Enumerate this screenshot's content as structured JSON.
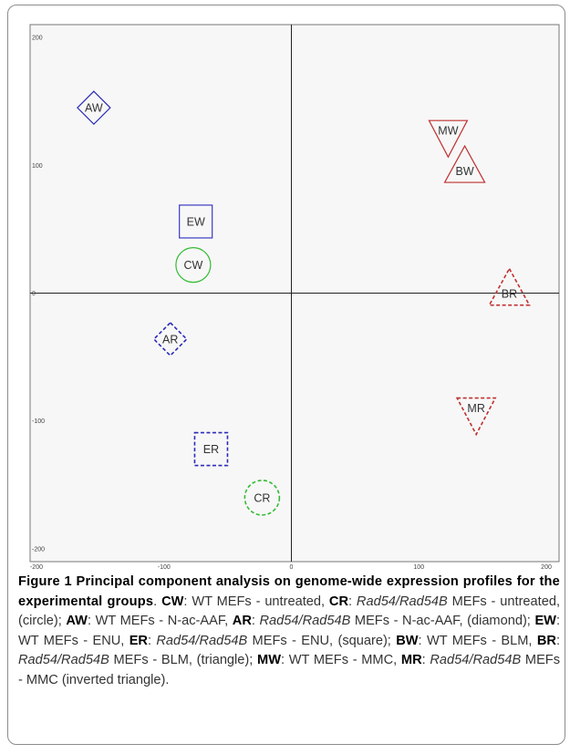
{
  "chart_data": {
    "type": "scatter",
    "xlim": [
      -205,
      210
    ],
    "ylim": [
      -210,
      210
    ],
    "x_ticks": [
      "-200",
      "-100",
      "0",
      "100",
      "200"
    ],
    "y_ticks": [
      "200",
      "100",
      "0",
      "-100",
      "-200"
    ],
    "x_tick_values": [
      -200,
      -100,
      0,
      100,
      200
    ],
    "y_tick_values": [
      200,
      100,
      0,
      -100,
      -200
    ],
    "grid": false,
    "points": [
      {
        "label": "AW",
        "x": -155,
        "y": 145,
        "shape": "diamond",
        "line": "solid",
        "color": "#2b2bb8"
      },
      {
        "label": "AR",
        "x": -95,
        "y": -36,
        "shape": "diamond",
        "line": "dashed",
        "color": "#2b2bb8"
      },
      {
        "label": "EW",
        "x": -75,
        "y": 56,
        "shape": "square",
        "line": "solid",
        "color": "#3a3ac4"
      },
      {
        "label": "ER",
        "x": -63,
        "y": -122,
        "shape": "square",
        "line": "dashed",
        "color": "#2b2bb8"
      },
      {
        "label": "CW",
        "x": -77,
        "y": 22,
        "shape": "circle",
        "line": "solid",
        "color": "#33bb33"
      },
      {
        "label": "CR",
        "x": -23,
        "y": -160,
        "shape": "circle",
        "line": "dashed",
        "color": "#33bb33"
      },
      {
        "label": "MW",
        "x": 123,
        "y": 125,
        "shape": "inverted-triangle",
        "line": "solid",
        "color": "#c03030"
      },
      {
        "label": "MR",
        "x": 145,
        "y": -92,
        "shape": "inverted-triangle",
        "line": "dashed",
        "color": "#c03030"
      },
      {
        "label": "BW",
        "x": 136,
        "y": 98,
        "shape": "triangle",
        "line": "solid",
        "color": "#c03030"
      },
      {
        "label": "BR",
        "x": 171,
        "y": 2,
        "shape": "triangle",
        "line": "dashed",
        "color": "#c03030"
      }
    ]
  },
  "caption": {
    "title": "Figure 1 Principal component analysis on genome-wide expression profiles for the experimental groups",
    "title_end": ".",
    "segments": [
      {
        "b": "CW",
        "t": ": WT MEFs - untreated, "
      },
      {
        "b": "CR",
        "i": "Rad54/Rad54B",
        "t": " MEFs - untreated, (circle); "
      },
      {
        "b": "AW",
        "t": ": WT MEFs - N-ac-AAF, "
      },
      {
        "b": "AR",
        "i": "Rad54/Rad54B",
        "t": " MEFs - N-ac-AAF, (diamond); "
      },
      {
        "b": "EW",
        "t": ": WT MEFs - ENU, "
      },
      {
        "b": "ER",
        "i": "Rad54/Rad54B",
        "t": " MEFs - ENU, (square); "
      },
      {
        "b": "BW",
        "t": ": WT MEFs - BLM, "
      },
      {
        "b": "BR",
        "i": "Rad54/Rad54B",
        "t": " MEFs - BLM, (triangle); "
      },
      {
        "b": "MW",
        "t": ": WT MEFs - MMC, "
      },
      {
        "b": "MR",
        "i": "Rad54/Rad54B",
        "t": " MEFs - MMC (inverted triangle)."
      }
    ],
    "colon": ": "
  }
}
